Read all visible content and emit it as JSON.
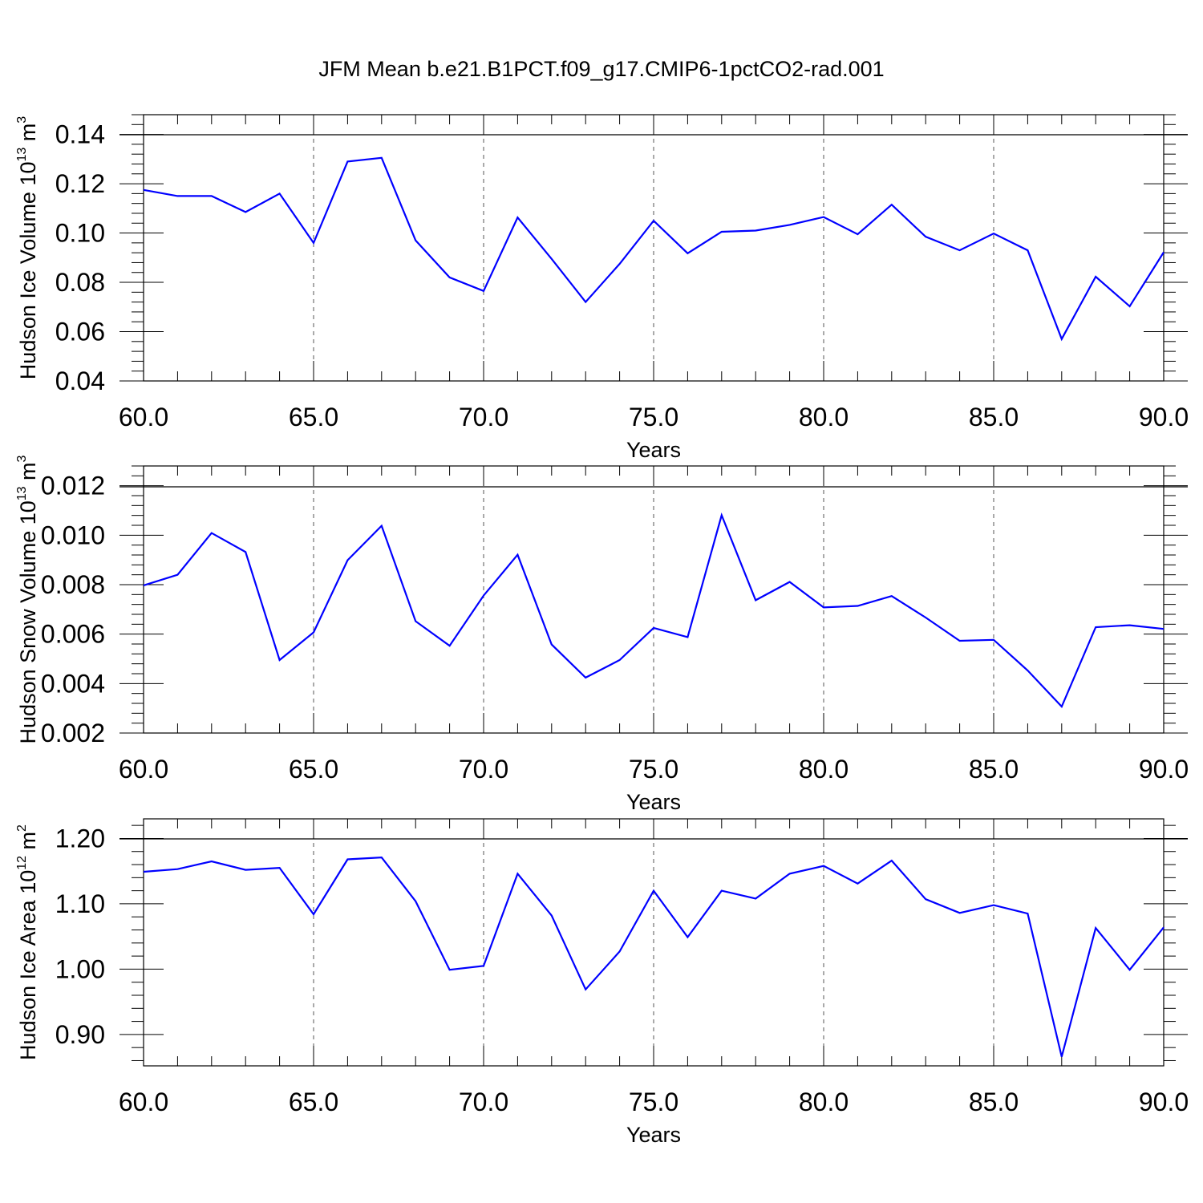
{
  "title": "JFM Mean b.e21.B1PCT.f09_g17.CMIP6-1pctCO2-rad.001",
  "colors": {
    "series": "#0000ff",
    "axis": "#000000",
    "grid": "#555555"
  },
  "chart_data": [
    {
      "type": "line",
      "title": "JFM Mean b.e21.B1PCT.f09_g17.CMIP6-1pctCO2-rad.001",
      "xlabel": "Years",
      "ylabel": {
        "text": "Hudson Ice Volume 10",
        "exp": "13",
        "unit": " m",
        "unit_exp": "3"
      },
      "xlim": [
        60,
        90
      ],
      "ylim": [
        0.04,
        0.148
      ],
      "xticks": [
        "60.0",
        "65.0",
        "70.0",
        "75.0",
        "80.0",
        "85.0",
        "90.0"
      ],
      "yticks": [
        "0.04",
        "0.06",
        "0.08",
        "0.10",
        "0.12",
        "0.14"
      ],
      "ytick_values": [
        0.04,
        0.06,
        0.08,
        0.1,
        0.12,
        0.14
      ],
      "grid": "vertical dashed at major x ticks",
      "x": [
        60,
        61,
        62,
        63,
        64,
        65,
        66,
        67,
        68,
        69,
        70,
        71,
        72,
        73,
        74,
        75,
        76,
        77,
        78,
        79,
        80,
        81,
        82,
        83,
        84,
        85,
        86,
        87,
        88,
        89,
        90
      ],
      "y": [
        0.1175,
        0.115,
        0.115,
        0.1085,
        0.116,
        0.096,
        0.129,
        0.1305,
        0.097,
        0.082,
        0.0765,
        0.1063,
        0.0895,
        0.072,
        0.0875,
        0.105,
        0.0918,
        0.1005,
        0.101,
        0.1033,
        0.1065,
        0.0995,
        0.1115,
        0.0985,
        0.093,
        0.0998,
        0.093,
        0.057,
        0.0823,
        0.0703,
        0.0922
      ]
    },
    {
      "type": "line",
      "xlabel": "Years",
      "ylabel": {
        "text": "Hudson Snow Volume 10",
        "exp": "13",
        "unit": " m",
        "unit_exp": "3"
      },
      "xlim": [
        60,
        90
      ],
      "ylim": [
        0.002,
        0.0128
      ],
      "xticks": [
        "60.0",
        "65.0",
        "70.0",
        "75.0",
        "80.0",
        "85.0",
        "90.0"
      ],
      "yticks": [
        "0.002",
        "0.004",
        "0.006",
        "0.008",
        "0.010",
        "0.012"
      ],
      "ytick_values": [
        0.002,
        0.004,
        0.006,
        0.008,
        0.01,
        0.012
      ],
      "grid": "vertical dashed at major x ticks",
      "x": [
        60,
        61,
        62,
        63,
        64,
        65,
        66,
        67,
        68,
        69,
        70,
        71,
        72,
        73,
        74,
        75,
        76,
        77,
        78,
        79,
        80,
        81,
        82,
        83,
        84,
        85,
        86,
        87,
        88,
        89,
        90
      ],
      "y": [
        0.00797,
        0.0084,
        0.01009,
        0.00932,
        0.00495,
        0.00607,
        0.00899,
        0.01038,
        0.00652,
        0.00553,
        0.00756,
        0.00921,
        0.00558,
        0.00424,
        0.00495,
        0.00625,
        0.00588,
        0.01081,
        0.00737,
        0.00811,
        0.00708,
        0.00714,
        0.00754,
        0.00667,
        0.00573,
        0.00577,
        0.00453,
        0.00307,
        0.00628,
        0.00636,
        0.00621
      ]
    },
    {
      "type": "line",
      "xlabel": "Years",
      "ylabel": {
        "text": "Hudson Ice Area 10",
        "exp": "12",
        "unit": " m",
        "unit_exp": "2"
      },
      "xlim": [
        60,
        90
      ],
      "ylim": [
        0.852,
        1.23
      ],
      "xticks": [
        "60.0",
        "65.0",
        "70.0",
        "75.0",
        "80.0",
        "85.0",
        "90.0"
      ],
      "yticks": [
        "0.90",
        "1.00",
        "1.10",
        "1.20"
      ],
      "ytick_values": [
        0.9,
        1.0,
        1.1,
        1.2
      ],
      "grid": "vertical dashed at major x ticks",
      "x": [
        60,
        61,
        62,
        63,
        64,
        65,
        66,
        67,
        68,
        69,
        70,
        71,
        72,
        73,
        74,
        75,
        76,
        77,
        78,
        79,
        80,
        81,
        82,
        83,
        84,
        85,
        86,
        87,
        88,
        89,
        90
      ],
      "y": [
        1.149,
        1.153,
        1.165,
        1.152,
        1.155,
        1.084,
        1.168,
        1.171,
        1.104,
        0.999,
        1.005,
        1.146,
        1.082,
        0.969,
        1.027,
        1.12,
        1.049,
        1.12,
        1.108,
        1.146,
        1.158,
        1.131,
        1.166,
        1.107,
        1.086,
        1.098,
        1.085,
        0.866,
        1.063,
        0.999,
        1.064
      ]
    }
  ]
}
